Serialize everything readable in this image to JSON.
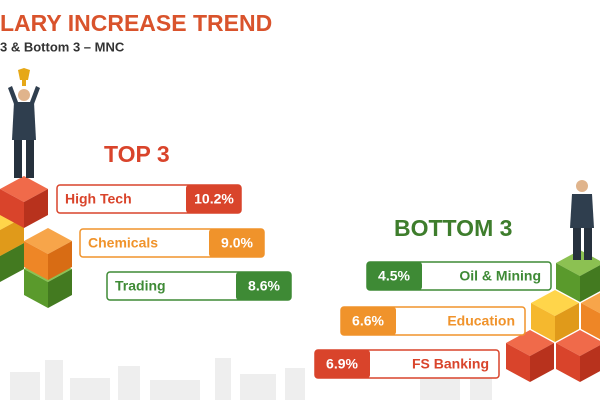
{
  "header": {
    "title": "LARY INCREASE TREND",
    "subtitle": "3 & Bottom 3 – MNC"
  },
  "top": {
    "heading": "TOP 3",
    "items": [
      {
        "label": "High Tech",
        "value": "10.2%"
      },
      {
        "label": "Chemicals",
        "value": "9.0%"
      },
      {
        "label": "Trading",
        "value": "8.6%"
      }
    ]
  },
  "bottom": {
    "heading": "BOTTOM 3",
    "items": [
      {
        "label": "Oil & Mining",
        "value": "4.5%"
      },
      {
        "label": "Education",
        "value": "6.6%"
      },
      {
        "label": "FS Banking",
        "value": "6.9%"
      }
    ]
  }
}
